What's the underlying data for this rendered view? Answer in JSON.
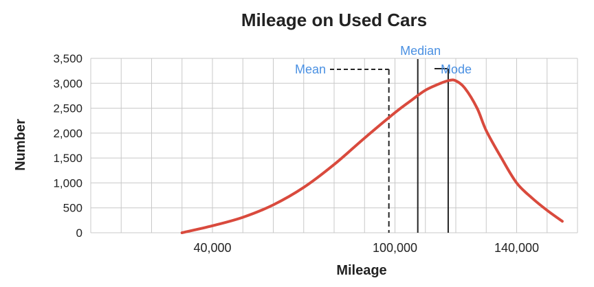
{
  "chart_data": {
    "type": "line",
    "title": "Mileage on Used Cars",
    "xlabel": "Mileage",
    "ylabel": "Number",
    "xlim": [
      0,
      160000
    ],
    "ylim": [
      0,
      3500
    ],
    "x_grid_step": 10000,
    "y_ticks": [
      0,
      500,
      1000,
      1500,
      2000,
      2500,
      3000,
      3500
    ],
    "y_tick_labels": [
      "0",
      "500",
      "1,000",
      "1,500",
      "2,000",
      "2,500",
      "3,000",
      "3,500"
    ],
    "x_ticks": [
      40000,
      100000,
      140000
    ],
    "x_tick_labels": [
      "40,000",
      "100,000",
      "140,000"
    ],
    "grid": true,
    "series": [
      {
        "color": "#d94a3d",
        "x": [
          30000,
          40000,
          50000,
          60000,
          70000,
          80000,
          90000,
          100000,
          105000,
          110000,
          115000,
          118000,
          120000,
          123000,
          127000,
          130000,
          135000,
          140000,
          145000,
          150000,
          155000
        ],
        "y": [
          0,
          140,
          310,
          560,
          910,
          1370,
          1900,
          2410,
          2640,
          2860,
          3000,
          3060,
          3050,
          2900,
          2500,
          2050,
          1500,
          1000,
          700,
          450,
          230
        ]
      }
    ],
    "markers": [
      {
        "label": "Mean",
        "x": 98000,
        "style": "dashed",
        "color": "#222222",
        "label_color": "#4a90e2"
      },
      {
        "label": "Median",
        "x": 107500,
        "style": "solid",
        "color": "#222222",
        "label_color": "#4a90e2"
      },
      {
        "label": "Mode",
        "x": 117500,
        "style": "solid",
        "color": "#222222",
        "label_color": "#4a90e2"
      }
    ]
  }
}
